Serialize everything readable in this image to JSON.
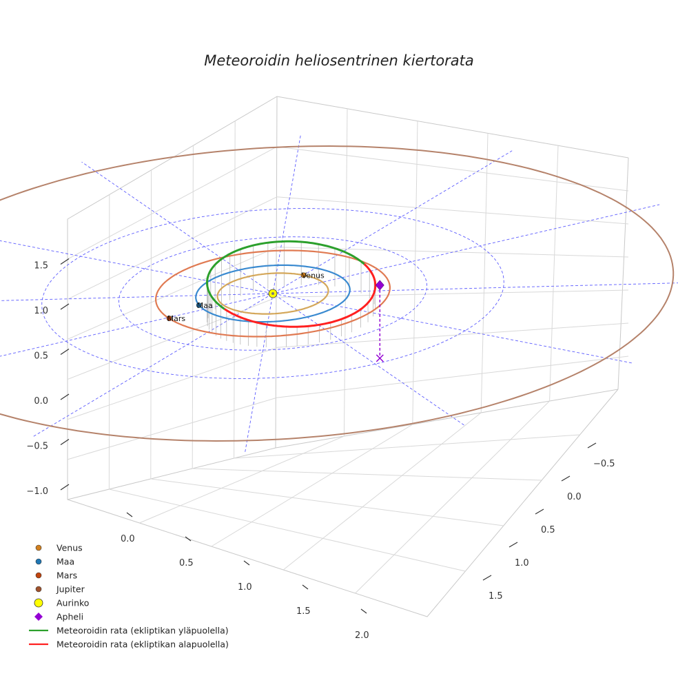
{
  "chart_data": {
    "type": "scatter",
    "title": "Meteoroidin heliosentrinen kiertorata",
    "xlabel": "",
    "ylabel": "",
    "zlabel": "",
    "projection": "3d",
    "x_ticks": [
      "0.0",
      "0.5",
      "1.0",
      "1.5",
      "2.0"
    ],
    "y_ticks": [
      "−0.5",
      "0.0",
      "0.5",
      "1.0",
      "1.5"
    ],
    "z_ticks": [
      "−1.0",
      "−0.5",
      "0.0",
      "0.5",
      "1.0",
      "1.5"
    ],
    "xlim": [
      -0.3,
      2.3
    ],
    "ylim": [
      -0.8,
      1.9
    ],
    "zlim": [
      -1.1,
      1.7
    ],
    "grid": true,
    "legend_position": "bottom-left",
    "planets": [
      {
        "name": "Venus",
        "label": "Venus",
        "orbit_radius_au": 0.72,
        "position": [
          0.0,
          -0.72,
          0.0
        ],
        "color": "#d4a75a",
        "marker_color": "#d2801f"
      },
      {
        "name": "Maa",
        "label": "Maa",
        "orbit_radius_au": 1.0,
        "position": [
          -0.64,
          0.77,
          0.0
        ],
        "color": "#3a8ad0",
        "marker_color": "#1f77b4"
      },
      {
        "name": "Mars",
        "label": "Mars",
        "orbit_radius_au": 1.52,
        "position": [
          -0.73,
          1.33,
          0.0
        ],
        "color": "#e07a52",
        "marker_color": "#c1440e"
      },
      {
        "name": "Jupiter",
        "label": "",
        "orbit_radius_au": 5.2,
        "color": "#b5826a",
        "marker_color": "#a0522d"
      }
    ],
    "sun": {
      "name": "Aurinko",
      "position": [
        0,
        0,
        0
      ],
      "color": "#ffff00"
    },
    "aphelion": {
      "name": "Apheli",
      "position": [
        1.45,
        -0.33,
        0.2
      ],
      "color": "#9400d3"
    },
    "meteoroid_orbit": {
      "perihelion_au": 0.78,
      "aphelion_au": 1.5,
      "above_color": "#2ca02c",
      "below_color": "#ff2020"
    },
    "legend": [
      {
        "label": "Venus",
        "kind": "dot",
        "color": "#d2801f"
      },
      {
        "label": "Maa",
        "kind": "dot",
        "color": "#1f77b4"
      },
      {
        "label": "Mars",
        "kind": "dot",
        "color": "#c1440e"
      },
      {
        "label": "Jupiter",
        "kind": "dot",
        "color": "#a0522d"
      },
      {
        "label": "Aurinko",
        "kind": "sun",
        "color": "#ffff00"
      },
      {
        "label": "Apheli",
        "kind": "diamond",
        "color": "#9400d3"
      },
      {
        "label": "Meteoroidin rata (ekliptikan yläpuolella)",
        "kind": "line",
        "color": "#2ca02c"
      },
      {
        "label": "Meteoroidin rata (ekliptikan alapuolella)",
        "kind": "line",
        "color": "#ff2020"
      }
    ]
  }
}
